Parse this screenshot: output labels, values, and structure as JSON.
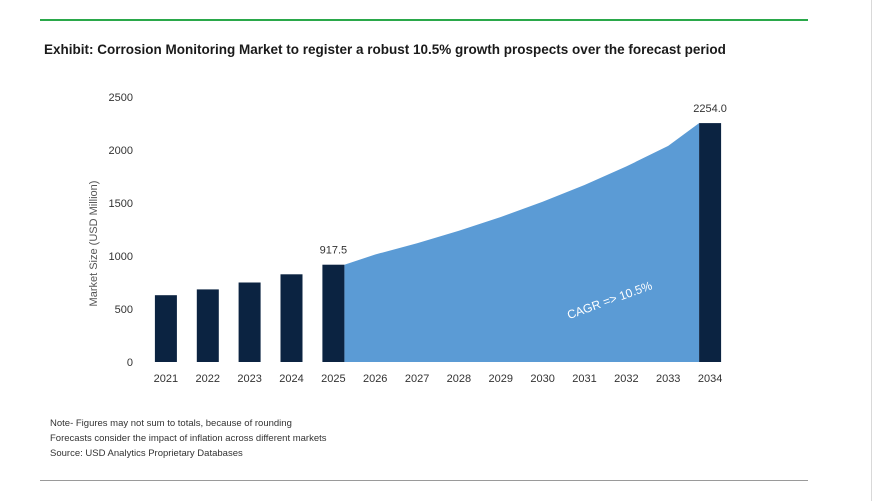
{
  "title": "Exhibit: Corrosion Monitoring Market to register a robust 10.5% growth prospects over the forecast period",
  "notes": [
    "Note- Figures may not sum to totals, because of rounding",
    "Forecasts consider the impact of inflation across different markets",
    "Source: USD Analytics Proprietary Databases"
  ],
  "colors": {
    "bar": "#0b2341",
    "area": "#5b9bd5",
    "accent_line": "#2aa84a"
  },
  "chart_data": {
    "type": "bar",
    "categories": [
      "2021",
      "2022",
      "2023",
      "2024",
      "2025",
      "2026",
      "2027",
      "2028",
      "2029",
      "2030",
      "2031",
      "2032",
      "2033",
      "2034"
    ],
    "bars": [
      {
        "x": "2021",
        "value": 630
      },
      {
        "x": "2022",
        "value": 685
      },
      {
        "x": "2023",
        "value": 750
      },
      {
        "x": "2024",
        "value": 827
      },
      {
        "x": "2025",
        "value": 917.5
      },
      {
        "x": "2034",
        "value": 2254.0
      }
    ],
    "area": {
      "x": [
        "2025",
        "2026",
        "2027",
        "2028",
        "2029",
        "2030",
        "2031",
        "2032",
        "2033",
        "2034"
      ],
      "values": [
        917.5,
        1014,
        1120,
        1238,
        1368,
        1511,
        1670,
        1845,
        2039,
        2254.0
      ]
    },
    "data_labels": [
      {
        "x": "2025",
        "text": "917.5"
      },
      {
        "x": "2034",
        "text": "2254.0"
      }
    ],
    "annotation": "CAGR => 10.5%",
    "ylabel": "Market Size (USD Million)",
    "xlabel": "",
    "ylim": [
      0,
      2500
    ],
    "yticks": [
      "0",
      "500",
      "1000",
      "1500",
      "2000",
      "2500"
    ],
    "grid": false,
    "legend": "none"
  }
}
